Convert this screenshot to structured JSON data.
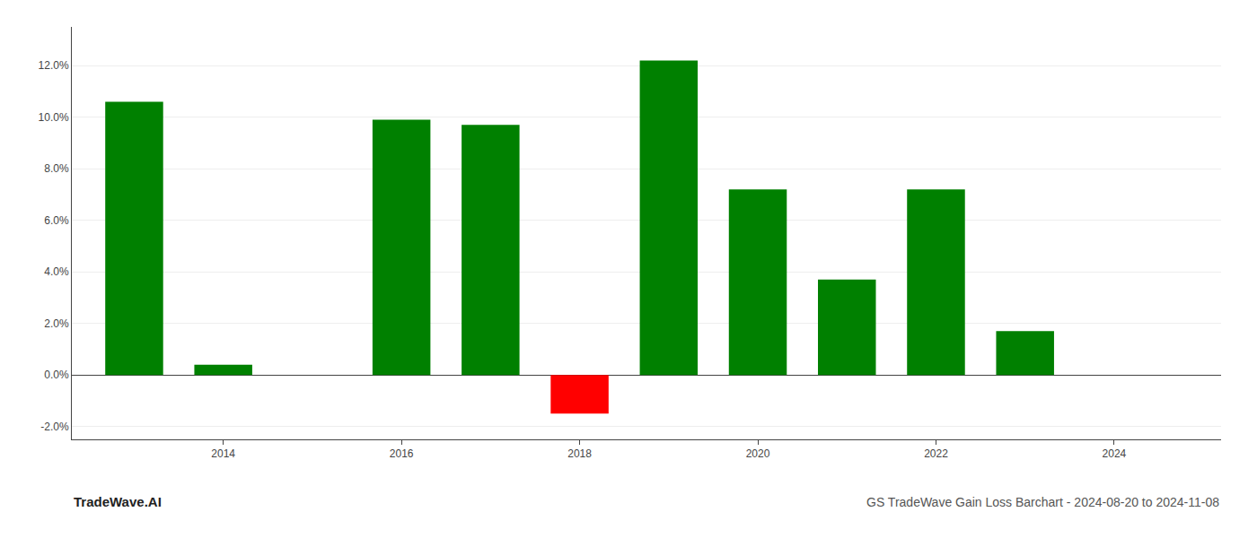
{
  "chart_data": {
    "type": "bar",
    "title": "GS TradeWave Gain Loss Barchart - 2024-08-20 to 2024-11-08",
    "annotations": [
      {
        "text": "TradeWave.AI"
      }
    ],
    "x": [
      2013,
      2014,
      2016,
      2017,
      2018,
      2019,
      2020,
      2021,
      2022,
      2023
    ],
    "values": [
      0.106,
      0.004,
      0.099,
      0.097,
      -0.015,
      0.122,
      0.072,
      0.037,
      0.072,
      0.017
    ],
    "colors": [
      "#008000",
      "#008000",
      "#008000",
      "#008000",
      "#ff0000",
      "#008000",
      "#008000",
      "#008000",
      "#008000",
      "#008000"
    ],
    "xlim": [
      2012.3,
      2025.2
    ],
    "xticks": [
      2014,
      2016,
      2018,
      2020,
      2022,
      2024
    ],
    "ylim": [
      -0.025,
      0.135
    ],
    "yticks": [
      {
        "value": -0.02,
        "label": "-2.0%"
      },
      {
        "value": 0.0,
        "label": "0.0%"
      },
      {
        "value": 0.02,
        "label": "2.0%"
      },
      {
        "value": 0.04,
        "label": "4.0%"
      },
      {
        "value": 0.06,
        "label": "6.0%"
      },
      {
        "value": 0.08,
        "label": "8.0%"
      },
      {
        "value": 0.1,
        "label": "10.0%"
      },
      {
        "value": 0.12,
        "label": "12.0%"
      }
    ],
    "grid": true
  }
}
